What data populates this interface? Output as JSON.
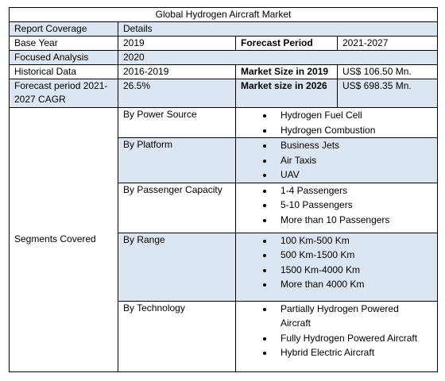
{
  "title": "Global Hydrogen Aircraft Market",
  "header": [
    "Report Coverage",
    "Details"
  ],
  "rows": [
    [
      "Base Year",
      "2019",
      "Forecast Period",
      "2021-2027"
    ],
    [
      "Focused Analysis",
      "2020"
    ],
    [
      "Historical Data",
      "2016-2019",
      "Market Size in 2019",
      "US$ 106.50 Mn."
    ],
    [
      "Forecast period 2021-2027 CAGR",
      "26.5%",
      "Market size in 2026",
      "US$ 698.35 Mn."
    ]
  ],
  "segments": {
    "label": "Segments Covered",
    "groups": [
      {
        "name": "By Power Source",
        "items": [
          "Hydrogen Fuel Cell",
          "Hydrogen Combustion"
        ]
      },
      {
        "name": "By Platform",
        "items": [
          "Business Jets",
          "Air Taxis",
          "UAV"
        ]
      },
      {
        "name": "By Passenger Capacity",
        "items": [
          "1-4 Passengers",
          "5-10 Passengers",
          "More than 10 Passengers"
        ]
      },
      {
        "name": "By Range",
        "items": [
          "100 Km-500 Km",
          "500 Km-1500 Km",
          "1500 Km-4000 Km",
          "More than 4000 Km"
        ]
      },
      {
        "name": "By Technology",
        "items": [
          "Partially Hydrogen Powered Aircraft",
          "Fully Hydrogen Powered Aircraft",
          "Hybrid Electric Aircraft"
        ]
      }
    ]
  }
}
